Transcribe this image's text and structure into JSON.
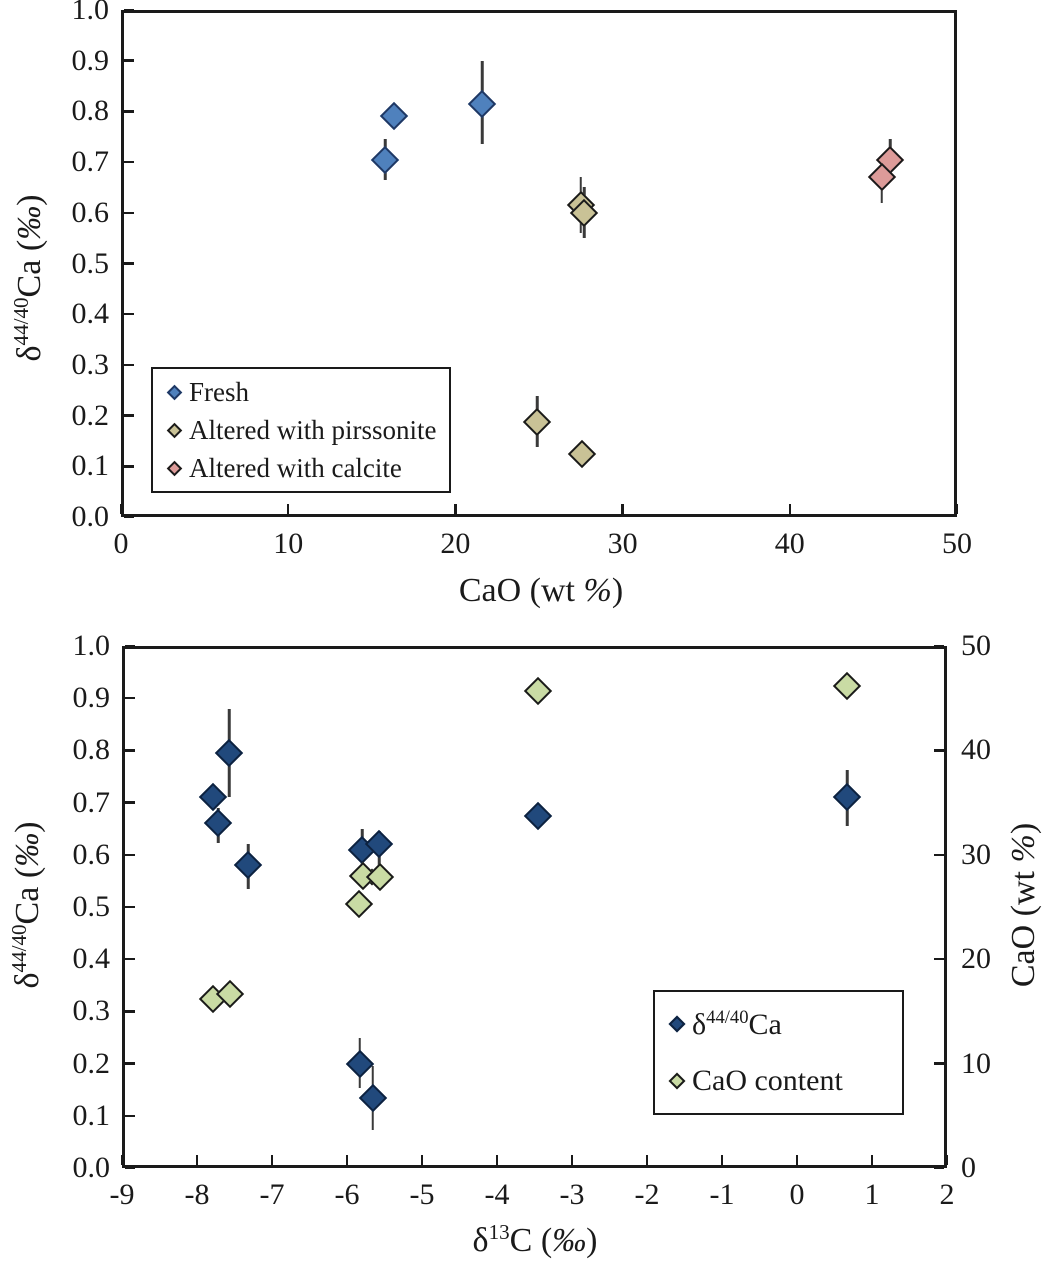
{
  "page": {
    "background": "#ffffff"
  },
  "chart_data": [
    {
      "id": "top",
      "type": "scatter",
      "title": "",
      "xlabel_segments": [
        {
          "text": "CaO (wt "
        },
        {
          "text": "%",
          "italic": true
        },
        {
          "text": ")"
        }
      ],
      "ylabel_segments": [
        {
          "text": "δ"
        },
        {
          "text": "44/40",
          "sup": true
        },
        {
          "text": "Ca ("
        },
        {
          "text": "‰",
          "italic": true
        },
        {
          "text": ")"
        }
      ],
      "xlim": [
        0,
        50
      ],
      "ylim": [
        0.0,
        1.0
      ],
      "xticks": [
        0,
        10,
        20,
        30,
        40,
        50
      ],
      "yticks": [
        0.0,
        0.1,
        0.2,
        0.3,
        0.4,
        0.5,
        0.6,
        0.7,
        0.8,
        0.9,
        1.0
      ],
      "xtick_decimals": 0,
      "ytick_decimals": 1,
      "grid": false,
      "legend_position": "left-middle",
      "series": [
        {
          "name": "Fresh",
          "marker": "diamond",
          "fill": "#4f81bd",
          "edge": "#1f3864",
          "points": [
            {
              "x": 15.8,
              "y": 0.705,
              "err_lo": 0.04,
              "err_hi": 0.04
            },
            {
              "x": 16.3,
              "y": 0.79
            },
            {
              "x": 21.6,
              "y": 0.815,
              "err_lo": 0.08,
              "err_hi": 0.085
            }
          ]
        },
        {
          "name": "Altered with pirssonite",
          "marker": "diamond",
          "fill": "#c9c296",
          "edge": "#1a1a1a",
          "points": [
            {
              "x": 27.5,
              "y": 0.615,
              "err_lo": 0.055,
              "err_hi": 0.055
            },
            {
              "x": 27.7,
              "y": 0.6,
              "err_lo": 0.05,
              "err_hi": 0.05
            },
            {
              "x": 24.9,
              "y": 0.188,
              "err_lo": 0.05,
              "err_hi": 0.05
            },
            {
              "x": 27.6,
              "y": 0.125
            }
          ]
        },
        {
          "name": "Altered with calcite",
          "marker": "diamond",
          "fill": "#dd9b99",
          "edge": "#1a1a1a",
          "points": [
            {
              "x": 46.0,
              "y": 0.705,
              "err_lo": 0.03,
              "err_hi": 0.04
            },
            {
              "x": 45.5,
              "y": 0.67,
              "err_lo": 0.05,
              "err_hi": 0.03
            }
          ]
        }
      ]
    },
    {
      "id": "bottom",
      "type": "scatter",
      "title": "",
      "xlabel_segments": [
        {
          "text": "δ"
        },
        {
          "text": "13",
          "sup": true
        },
        {
          "text": "C ("
        },
        {
          "text": "‰",
          "italic": true
        },
        {
          "text": ")"
        }
      ],
      "ylabel_segments": [
        {
          "text": "δ"
        },
        {
          "text": "44/40",
          "sup": true
        },
        {
          "text": "Ca ("
        },
        {
          "text": "‰",
          "italic": true
        },
        {
          "text": ")"
        }
      ],
      "ylabel_right_segments": [
        {
          "text": "CaO (wt "
        },
        {
          "text": "%",
          "italic": true
        },
        {
          "text": ")"
        }
      ],
      "xlim": [
        -9,
        2
      ],
      "ylim": [
        0.0,
        1.0
      ],
      "ylim_right": [
        0,
        50
      ],
      "xticks": [
        -9,
        -8,
        -7,
        -6,
        -5,
        -4,
        -3,
        -2,
        -1,
        0,
        1,
        2
      ],
      "yticks": [
        0.0,
        0.1,
        0.2,
        0.3,
        0.4,
        0.5,
        0.6,
        0.7,
        0.8,
        0.9,
        1.0
      ],
      "yticks_right": [
        0,
        10,
        20,
        30,
        40,
        50
      ],
      "xtick_decimals": 0,
      "ytick_decimals": 1,
      "ytick_right_decimals": 0,
      "grid": false,
      "legend_position": "right-lower",
      "series": [
        {
          "name_segments": [
            {
              "text": "δ"
            },
            {
              "text": "44/40",
              "sup": true
            },
            {
              "text": "Ca"
            }
          ],
          "marker": "diamond",
          "axis": "left",
          "fill": "#21497c",
          "edge": "#0d2240",
          "points": [
            {
              "x": -7.57,
              "y": 0.795,
              "err_lo": 0.085,
              "err_hi": 0.085
            },
            {
              "x": -7.79,
              "y": 0.71
            },
            {
              "x": -7.72,
              "y": 0.66,
              "err_lo": 0.037,
              "err_hi": 0.03
            },
            {
              "x": -7.32,
              "y": 0.58,
              "err_lo": 0.045,
              "err_hi": 0.04
            },
            {
              "x": -5.8,
              "y": 0.61,
              "err_lo": 0.045,
              "err_hi": 0.04
            },
            {
              "x": -5.57,
              "y": 0.62,
              "err_lo": 0.05,
              "err_hi": 0.025
            },
            {
              "x": -5.83,
              "y": 0.2,
              "err_lo": 0.047,
              "err_hi": 0.05
            },
            {
              "x": -5.66,
              "y": 0.135,
              "err_lo": 0.062,
              "err_hi": 0.06
            },
            {
              "x": -3.45,
              "y": 0.675
            },
            {
              "x": 0.67,
              "y": 0.71,
              "err_lo": 0.054,
              "err_hi": 0.053
            }
          ]
        },
        {
          "name_segments": [
            {
              "text": "CaO content"
            }
          ],
          "marker": "diamond",
          "axis": "right",
          "fill": "#c9dba4",
          "edge": "#1a1a1a",
          "points": [
            {
              "x": -7.79,
              "y": 16.2
            },
            {
              "x": -7.56,
              "y": 16.7
            },
            {
              "x": -5.67,
              "y": 27.9,
              "size": 12
            },
            {
              "x": -5.79,
              "y": 28.0
            },
            {
              "x": -5.56,
              "y": 27.9
            },
            {
              "x": -5.84,
              "y": 25.3
            },
            {
              "x": -3.45,
              "y": 45.7
            },
            {
              "x": 0.67,
              "y": 46.2
            }
          ]
        }
      ]
    }
  ]
}
